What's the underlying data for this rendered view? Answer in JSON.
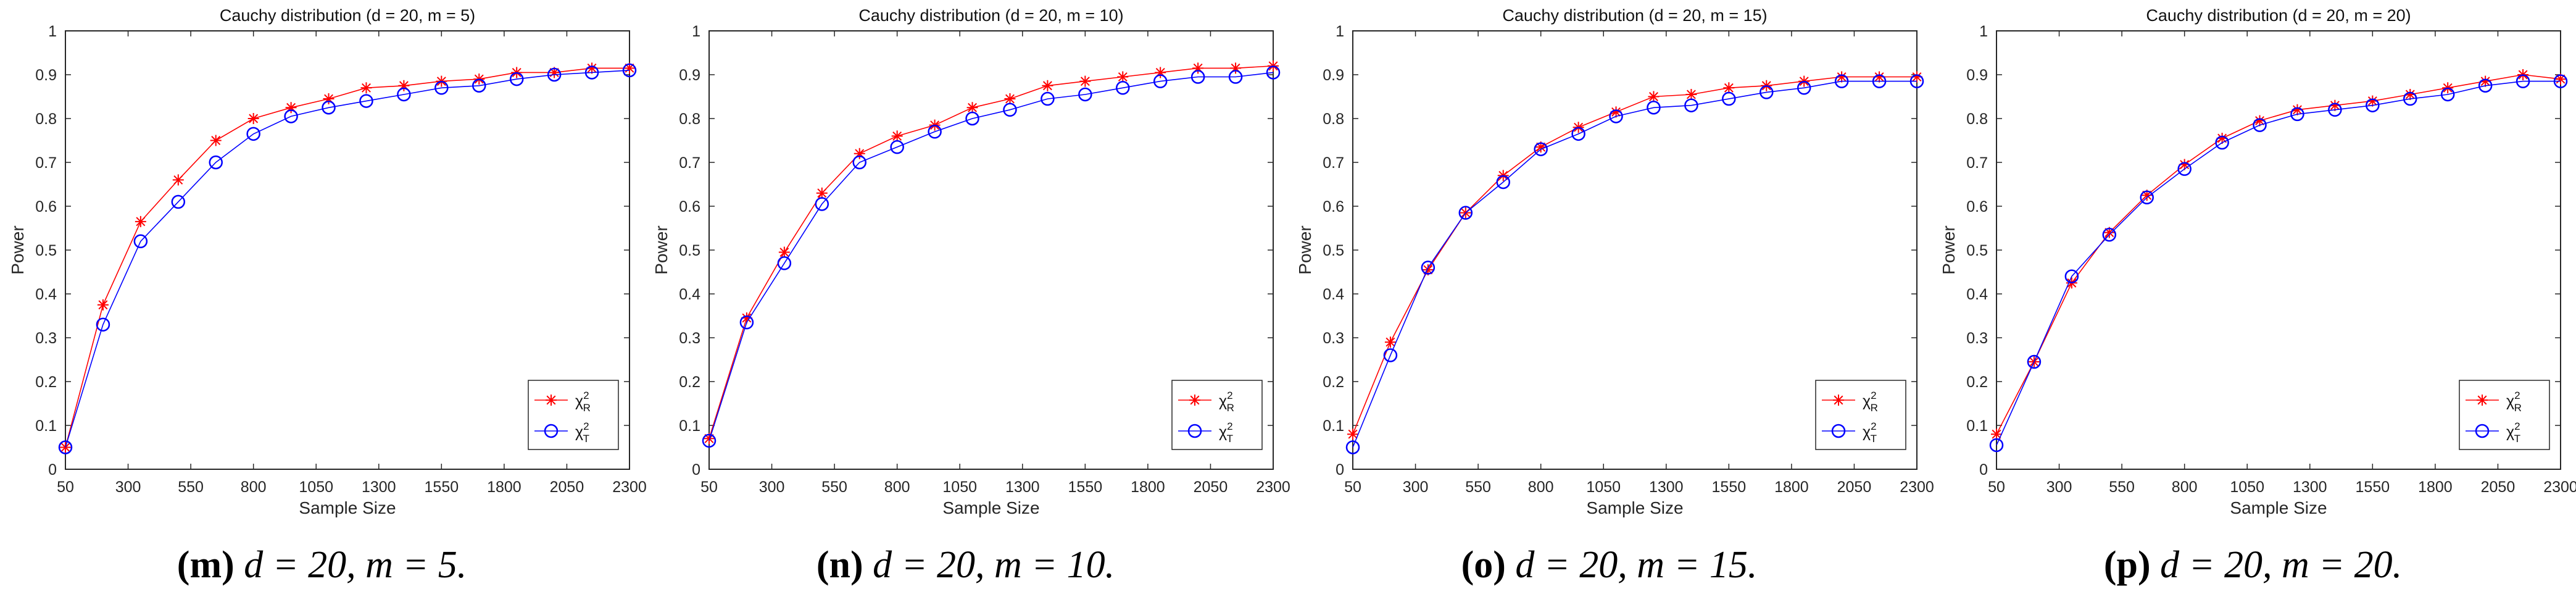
{
  "chart_data": [
    {
      "type": "line",
      "title": "Cauchy distribution (d = 20, m = 5)",
      "xlabel": "Sample Size",
      "ylabel": "Power",
      "xticks": [
        50,
        300,
        550,
        800,
        1050,
        1300,
        1550,
        1800,
        2050,
        2300
      ],
      "yticks": [
        0,
        0.1,
        0.2,
        0.3,
        0.4,
        0.5,
        0.6,
        0.7,
        0.8,
        0.9,
        1
      ],
      "xlim": [
        50,
        2300
      ],
      "ylim": [
        0,
        1
      ],
      "legend_position": "bottom-right",
      "x": [
        50,
        200,
        350,
        500,
        650,
        800,
        950,
        1100,
        1250,
        1400,
        1550,
        1700,
        1850,
        2000,
        2150,
        2300
      ],
      "series": [
        {
          "name": "χ²R",
          "symbol": "χ",
          "sup": "2",
          "sub": "R",
          "color": "#ff0000",
          "marker": "star",
          "values": [
            0.05,
            0.375,
            0.565,
            0.66,
            0.75,
            0.8,
            0.825,
            0.845,
            0.87,
            0.875,
            0.885,
            0.89,
            0.905,
            0.905,
            0.915,
            0.915
          ]
        },
        {
          "name": "χ²T",
          "symbol": "χ",
          "sup": "2",
          "sub": "T",
          "color": "#0000ff",
          "marker": "circle",
          "values": [
            0.05,
            0.33,
            0.52,
            0.61,
            0.7,
            0.765,
            0.805,
            0.825,
            0.84,
            0.855,
            0.87,
            0.875,
            0.89,
            0.9,
            0.905,
            0.91
          ]
        }
      ]
    },
    {
      "type": "line",
      "title": "Cauchy distribution (d = 20, m = 10)",
      "xlabel": "Sample Size",
      "ylabel": "Power",
      "xticks": [
        50,
        300,
        550,
        800,
        1050,
        1300,
        1550,
        1800,
        2050,
        2300
      ],
      "yticks": [
        0,
        0.1,
        0.2,
        0.3,
        0.4,
        0.5,
        0.6,
        0.7,
        0.8,
        0.9,
        1
      ],
      "xlim": [
        50,
        2300
      ],
      "ylim": [
        0,
        1
      ],
      "legend_position": "bottom-right",
      "x": [
        50,
        200,
        350,
        500,
        650,
        800,
        950,
        1100,
        1250,
        1400,
        1550,
        1700,
        1850,
        2000,
        2150,
        2300
      ],
      "series": [
        {
          "name": "χ²R",
          "symbol": "χ",
          "sup": "2",
          "sub": "R",
          "color": "#ff0000",
          "marker": "star",
          "values": [
            0.07,
            0.345,
            0.495,
            0.63,
            0.72,
            0.76,
            0.785,
            0.825,
            0.845,
            0.875,
            0.885,
            0.895,
            0.905,
            0.915,
            0.915,
            0.92
          ]
        },
        {
          "name": "χ²T",
          "symbol": "χ",
          "sup": "2",
          "sub": "T",
          "color": "#0000ff",
          "marker": "circle",
          "values": [
            0.065,
            0.335,
            0.47,
            0.605,
            0.7,
            0.735,
            0.77,
            0.8,
            0.82,
            0.845,
            0.855,
            0.87,
            0.885,
            0.895,
            0.895,
            0.905
          ]
        }
      ]
    },
    {
      "type": "line",
      "title": "Cauchy distribution (d = 20, m = 15)",
      "xlabel": "Sample Size",
      "ylabel": "Power",
      "xticks": [
        50,
        300,
        550,
        800,
        1050,
        1300,
        1550,
        1800,
        2050,
        2300
      ],
      "yticks": [
        0,
        0.1,
        0.2,
        0.3,
        0.4,
        0.5,
        0.6,
        0.7,
        0.8,
        0.9,
        1
      ],
      "xlim": [
        50,
        2300
      ],
      "ylim": [
        0,
        1
      ],
      "legend_position": "bottom-right",
      "x": [
        50,
        200,
        350,
        500,
        650,
        800,
        950,
        1100,
        1250,
        1400,
        1550,
        1700,
        1850,
        2000,
        2150,
        2300
      ],
      "series": [
        {
          "name": "χ²R",
          "symbol": "χ",
          "sup": "2",
          "sub": "R",
          "color": "#ff0000",
          "marker": "star",
          "values": [
            0.08,
            0.29,
            0.455,
            0.585,
            0.67,
            0.735,
            0.78,
            0.815,
            0.85,
            0.855,
            0.87,
            0.875,
            0.885,
            0.895,
            0.895,
            0.895
          ]
        },
        {
          "name": "χ²T",
          "symbol": "χ",
          "sup": "2",
          "sub": "T",
          "color": "#0000ff",
          "marker": "circle",
          "values": [
            0.05,
            0.26,
            0.46,
            0.585,
            0.655,
            0.73,
            0.765,
            0.805,
            0.825,
            0.83,
            0.845,
            0.86,
            0.87,
            0.885,
            0.885,
            0.885
          ]
        }
      ]
    },
    {
      "type": "line",
      "title": "Cauchy distribution (d = 20, m = 20)",
      "xlabel": "Sample Size",
      "ylabel": "Power",
      "xticks": [
        50,
        300,
        550,
        800,
        1050,
        1300,
        1550,
        1800,
        2050,
        2300
      ],
      "yticks": [
        0,
        0.1,
        0.2,
        0.3,
        0.4,
        0.5,
        0.6,
        0.7,
        0.8,
        0.9,
        1
      ],
      "xlim": [
        50,
        2300
      ],
      "ylim": [
        0,
        1
      ],
      "legend_position": "bottom-right",
      "x": [
        50,
        200,
        350,
        500,
        650,
        800,
        950,
        1100,
        1250,
        1400,
        1550,
        1700,
        1850,
        2000,
        2150,
        2300
      ],
      "series": [
        {
          "name": "χ²R",
          "symbol": "χ",
          "sup": "2",
          "sub": "R",
          "color": "#ff0000",
          "marker": "star",
          "values": [
            0.08,
            0.245,
            0.425,
            0.54,
            0.625,
            0.695,
            0.755,
            0.795,
            0.82,
            0.83,
            0.84,
            0.855,
            0.87,
            0.885,
            0.9,
            0.89
          ]
        },
        {
          "name": "χ²T",
          "symbol": "χ",
          "sup": "2",
          "sub": "T",
          "color": "#0000ff",
          "marker": "circle",
          "values": [
            0.055,
            0.245,
            0.44,
            0.535,
            0.62,
            0.685,
            0.745,
            0.785,
            0.81,
            0.82,
            0.83,
            0.845,
            0.855,
            0.875,
            0.885,
            0.885
          ]
        }
      ]
    }
  ],
  "captions": [
    {
      "letter": "(m)",
      "text": "d = 20, m = 5."
    },
    {
      "letter": "(n)",
      "text": "d = 20, m = 10."
    },
    {
      "letter": "(o)",
      "text": "d = 20, m = 15."
    },
    {
      "letter": "(p)",
      "text": "d = 20, m = 20."
    }
  ]
}
